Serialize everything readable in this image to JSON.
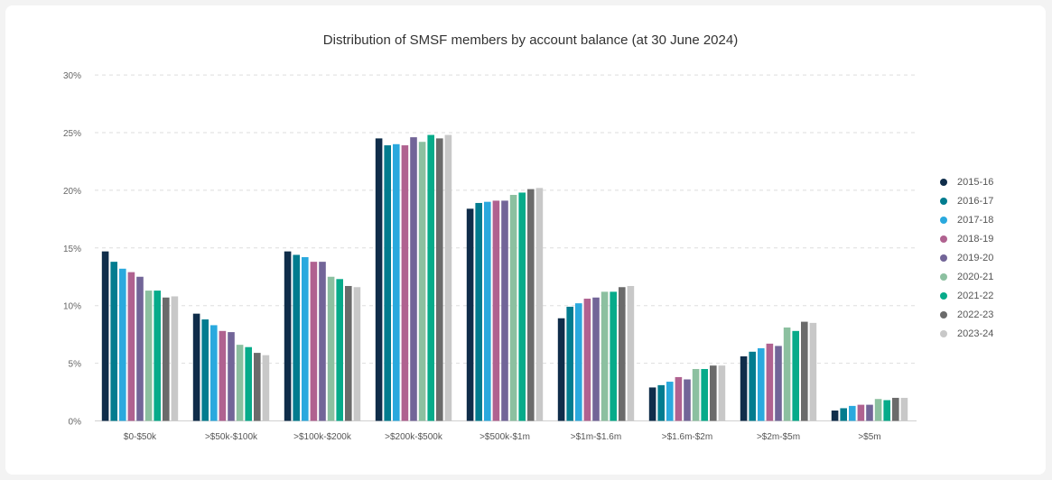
{
  "chart_data": {
    "type": "bar",
    "title": "Distribution of SMSF members by account balance (at 30 June 2024)",
    "xlabel": "",
    "ylabel": "",
    "ylim": [
      0,
      30
    ],
    "yticks": [
      "0%",
      "5%",
      "10%",
      "15%",
      "20%",
      "25%",
      "30%"
    ],
    "ytick_values": [
      0,
      5,
      10,
      15,
      20,
      25,
      30
    ],
    "grid": true,
    "legend_position": "right",
    "categories": [
      "$0-$50k",
      ">$50k-$100k",
      ">$100k-$200k",
      ">$200k-$500k",
      ">$500k-$1m",
      ">$1m-$1.6m",
      ">$1.6m-$2m",
      ">$2m-$5m",
      ">$5m"
    ],
    "series": [
      {
        "name": "2015-16",
        "color": "#0f2d4a",
        "values": [
          14.7,
          9.3,
          14.7,
          24.5,
          18.4,
          8.9,
          2.9,
          5.6,
          0.9
        ]
      },
      {
        "name": "2016-17",
        "color": "#027c8f",
        "values": [
          13.8,
          8.8,
          14.4,
          23.9,
          18.9,
          9.9,
          3.1,
          6.0,
          1.1
        ]
      },
      {
        "name": "2017-18",
        "color": "#2aa9de",
        "values": [
          13.2,
          8.3,
          14.2,
          24.0,
          19.0,
          10.2,
          3.4,
          6.3,
          1.3
        ]
      },
      {
        "name": "2018-19",
        "color": "#b06290",
        "values": [
          12.9,
          7.8,
          13.8,
          23.9,
          19.1,
          10.6,
          3.8,
          6.7,
          1.4
        ]
      },
      {
        "name": "2019-20",
        "color": "#726598",
        "values": [
          12.5,
          7.7,
          13.8,
          24.6,
          19.1,
          10.7,
          3.6,
          6.5,
          1.4
        ]
      },
      {
        "name": "2020-21",
        "color": "#8cc0a0",
        "values": [
          11.3,
          6.6,
          12.5,
          24.2,
          19.6,
          11.2,
          4.5,
          8.1,
          1.9
        ]
      },
      {
        "name": "2021-22",
        "color": "#07ab8a",
        "values": [
          11.3,
          6.4,
          12.3,
          24.8,
          19.8,
          11.2,
          4.5,
          7.8,
          1.8
        ]
      },
      {
        "name": "2022-23",
        "color": "#6b6b6b",
        "values": [
          10.7,
          5.9,
          11.7,
          24.5,
          20.1,
          11.6,
          4.8,
          8.6,
          2.0
        ]
      },
      {
        "name": "2023-24",
        "color": "#c8c8c8",
        "values": [
          10.8,
          5.7,
          11.6,
          24.8,
          20.2,
          11.7,
          4.8,
          8.5,
          2.0
        ]
      }
    ]
  }
}
